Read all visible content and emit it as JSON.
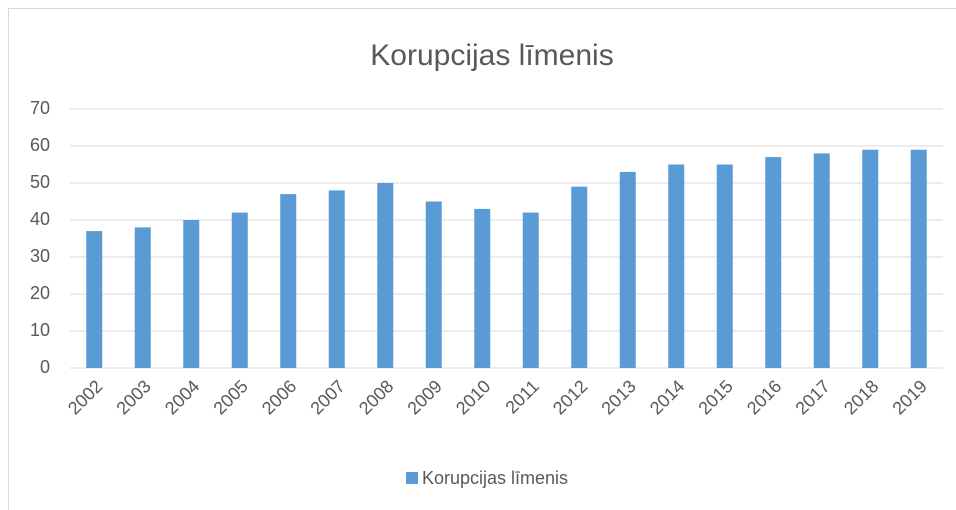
{
  "chart_data": {
    "type": "bar",
    "title": "Korupcijas līmenis",
    "categories": [
      "2002",
      "2003",
      "2004",
      "2005",
      "2006",
      "2007",
      "2008",
      "2009",
      "2010",
      "2011",
      "2012",
      "2013",
      "2014",
      "2015",
      "2016",
      "2017",
      "2018",
      "2019"
    ],
    "series": [
      {
        "name": "Korupcijas līmenis",
        "color": "#5b9bd5",
        "values": [
          37,
          38,
          40,
          42,
          47,
          48,
          50,
          45,
          43,
          42,
          49,
          53,
          55,
          55,
          57,
          58,
          59,
          59
        ]
      }
    ],
    "ylim": [
      0,
      70
    ],
    "yticks": [
      0,
      10,
      20,
      30,
      40,
      50,
      60,
      70
    ],
    "grid": true,
    "legend": "bottom"
  }
}
